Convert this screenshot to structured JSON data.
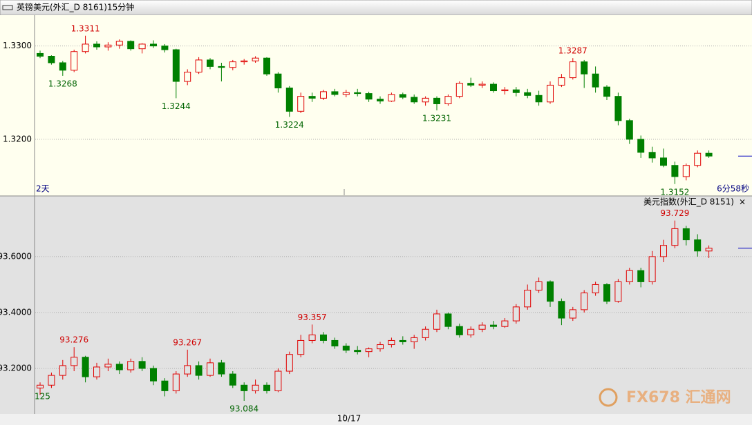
{
  "header": {
    "title": "英镑美元(外汇_D 8161)15分钟"
  },
  "watermark": "FX678 汇通网",
  "chart_data": [
    {
      "type": "candlestick",
      "period_label": "2天",
      "countdown": "6分58秒",
      "up_color": "#e00000",
      "down_color": "#008000",
      "grid": true,
      "ylim": [
        1.314,
        1.3333
      ],
      "yticks": [
        {
          "value": 1.33,
          "label": "1.3300"
        },
        {
          "value": 1.32,
          "label": "1.3200"
        }
      ],
      "candles": [
        [
          1.3292,
          1.3295,
          1.3287,
          1.3289
        ],
        [
          1.3289,
          1.329,
          1.328,
          1.3282
        ],
        [
          1.3282,
          1.3284,
          1.3268,
          1.3274
        ],
        [
          1.3274,
          1.3296,
          1.3272,
          1.3294
        ],
        [
          1.3294,
          1.3311,
          1.3292,
          1.3302
        ],
        [
          1.3302,
          1.3305,
          1.3296,
          1.3299
        ],
        [
          1.3299,
          1.3304,
          1.3295,
          1.3301
        ],
        [
          1.3301,
          1.3307,
          1.3297,
          1.3305
        ],
        [
          1.3305,
          1.3306,
          1.3295,
          1.3297
        ],
        [
          1.3297,
          1.3303,
          1.3292,
          1.3302
        ],
        [
          1.3302,
          1.3306,
          1.3298,
          1.33
        ],
        [
          1.33,
          1.3302,
          1.3293,
          1.3296
        ],
        [
          1.3296,
          1.3297,
          1.3244,
          1.3262
        ],
        [
          1.3262,
          1.3275,
          1.3258,
          1.3272
        ],
        [
          1.3272,
          1.3288,
          1.327,
          1.3285
        ],
        [
          1.3285,
          1.3287,
          1.3275,
          1.3278
        ],
        [
          1.3278,
          1.3282,
          1.3262,
          1.3277
        ],
        [
          1.3277,
          1.3285,
          1.3274,
          1.3283
        ],
        [
          1.3283,
          1.3286,
          1.328,
          1.3284
        ],
        [
          1.3284,
          1.3289,
          1.3282,
          1.3287
        ],
        [
          1.3287,
          1.3288,
          1.3268,
          1.327
        ],
        [
          1.327,
          1.3272,
          1.325,
          1.3255
        ],
        [
          1.3255,
          1.3257,
          1.3224,
          1.323
        ],
        [
          1.323,
          1.325,
          1.3228,
          1.3246
        ],
        [
          1.3246,
          1.325,
          1.324,
          1.3244
        ],
        [
          1.3244,
          1.3253,
          1.3242,
          1.3251
        ],
        [
          1.3251,
          1.3254,
          1.3246,
          1.3248
        ],
        [
          1.3248,
          1.3253,
          1.3245,
          1.325
        ],
        [
          1.325,
          1.3254,
          1.3246,
          1.3249
        ],
        [
          1.3249,
          1.3251,
          1.324,
          1.3243
        ],
        [
          1.3243,
          1.3246,
          1.3238,
          1.3241
        ],
        [
          1.3241,
          1.325,
          1.324,
          1.3248
        ],
        [
          1.3248,
          1.325,
          1.3243,
          1.3245
        ],
        [
          1.3245,
          1.3248,
          1.3238,
          1.324
        ],
        [
          1.324,
          1.3246,
          1.3236,
          1.3244
        ],
        [
          1.3244,
          1.3246,
          1.3231,
          1.3238
        ],
        [
          1.3238,
          1.3248,
          1.3236,
          1.3246
        ],
        [
          1.3246,
          1.3262,
          1.3244,
          1.326
        ],
        [
          1.326,
          1.3266,
          1.3256,
          1.3258
        ],
        [
          1.3258,
          1.3262,
          1.3255,
          1.3259
        ],
        [
          1.3259,
          1.3261,
          1.325,
          1.3252
        ],
        [
          1.3252,
          1.3256,
          1.3248,
          1.3253
        ],
        [
          1.3253,
          1.3256,
          1.3246,
          1.325
        ],
        [
          1.325,
          1.3254,
          1.3244,
          1.3247
        ],
        [
          1.3247,
          1.3252,
          1.3236,
          1.324
        ],
        [
          1.324,
          1.3262,
          1.3238,
          1.3258
        ],
        [
          1.3258,
          1.327,
          1.3256,
          1.3266
        ],
        [
          1.3266,
          1.3287,
          1.3264,
          1.3283
        ],
        [
          1.3283,
          1.3285,
          1.3255,
          1.327
        ],
        [
          1.327,
          1.3278,
          1.325,
          1.3256
        ],
        [
          1.3256,
          1.3258,
          1.3242,
          1.3246
        ],
        [
          1.3246,
          1.325,
          1.3215,
          1.322
        ],
        [
          1.322,
          1.3222,
          1.3195,
          1.32
        ],
        [
          1.32,
          1.3204,
          1.318,
          1.3186
        ],
        [
          1.3186,
          1.3192,
          1.3175,
          1.318
        ],
        [
          1.318,
          1.319,
          1.317,
          1.3172
        ],
        [
          1.3172,
          1.3176,
          1.3152,
          1.316
        ],
        [
          1.316,
          1.3174,
          1.3156,
          1.3172
        ],
        [
          1.3172,
          1.3188,
          1.317,
          1.3185
        ],
        [
          1.3185,
          1.3188,
          1.318,
          1.3182
        ]
      ],
      "high_labels": [
        null,
        null,
        null,
        null,
        "1.3311",
        null,
        null,
        null,
        null,
        null,
        null,
        null,
        null,
        null,
        null,
        null,
        null,
        null,
        null,
        null,
        null,
        null,
        null,
        null,
        null,
        null,
        null,
        null,
        null,
        null,
        null,
        null,
        null,
        null,
        null,
        null,
        null,
        null,
        null,
        null,
        null,
        null,
        null,
        null,
        null,
        null,
        null,
        "1.3287",
        null,
        null,
        null,
        null,
        null,
        null,
        null,
        null,
        null,
        null,
        null,
        null
      ],
      "low_labels": [
        null,
        null,
        "1.3268",
        null,
        null,
        null,
        null,
        null,
        null,
        null,
        null,
        null,
        "1.3244",
        null,
        null,
        null,
        null,
        null,
        null,
        null,
        null,
        null,
        "1.3224",
        null,
        null,
        null,
        null,
        null,
        null,
        null,
        null,
        null,
        null,
        null,
        null,
        "1.3231",
        null,
        null,
        null,
        null,
        null,
        null,
        null,
        null,
        null,
        null,
        null,
        null,
        null,
        null,
        null,
        null,
        null,
        null,
        null,
        null,
        "1.3152",
        null,
        null,
        null
      ]
    },
    {
      "type": "candlestick",
      "title": "美元指数(外汇_D 8151)",
      "close_button": "×",
      "edge_label": "125",
      "date_label": "10/17",
      "up_color": "#e00000",
      "down_color": "#008000",
      "grid": true,
      "ylim": [
        93.037,
        93.817
      ],
      "yticks": [
        {
          "value": 93.6,
          "label": "93.6000"
        },
        {
          "value": 93.4,
          "label": "93.4000"
        },
        {
          "value": 93.2,
          "label": "93.2000"
        }
      ],
      "candles": [
        [
          93.13,
          93.15,
          93.105,
          93.14
        ],
        [
          93.14,
          93.185,
          93.13,
          93.175
        ],
        [
          93.175,
          93.23,
          93.16,
          93.21
        ],
        [
          93.21,
          93.276,
          93.19,
          93.24
        ],
        [
          93.24,
          93.245,
          93.15,
          93.17
        ],
        [
          93.17,
          93.22,
          93.16,
          93.205
        ],
        [
          93.205,
          93.235,
          93.19,
          93.215
        ],
        [
          93.215,
          93.225,
          93.18,
          93.195
        ],
        [
          93.195,
          93.235,
          93.185,
          93.225
        ],
        [
          93.225,
          93.24,
          93.19,
          93.2
        ],
        [
          93.2,
          93.21,
          93.14,
          93.155
        ],
        [
          93.155,
          93.165,
          93.1,
          93.12
        ],
        [
          93.12,
          93.19,
          93.11,
          93.18
        ],
        [
          93.18,
          93.267,
          93.17,
          93.21
        ],
        [
          93.21,
          93.225,
          93.16,
          93.175
        ],
        [
          93.175,
          93.235,
          93.17,
          93.22
        ],
        [
          93.22,
          93.23,
          93.17,
          93.18
        ],
        [
          93.18,
          93.19,
          93.13,
          93.14
        ],
        [
          93.14,
          93.15,
          93.084,
          93.12
        ],
        [
          93.12,
          93.16,
          93.11,
          93.14
        ],
        [
          93.14,
          93.15,
          93.11,
          93.12
        ],
        [
          93.12,
          93.2,
          93.115,
          93.19
        ],
        [
          93.19,
          93.26,
          93.18,
          93.25
        ],
        [
          93.25,
          93.32,
          93.24,
          93.3
        ],
        [
          93.3,
          93.357,
          93.29,
          93.32
        ],
        [
          93.32,
          93.33,
          93.29,
          93.3
        ],
        [
          93.3,
          93.31,
          93.27,
          93.28
        ],
        [
          93.28,
          93.29,
          93.255,
          93.265
        ],
        [
          93.265,
          93.28,
          93.25,
          93.26
        ],
        [
          93.26,
          93.275,
          93.24,
          93.27
        ],
        [
          93.27,
          93.295,
          93.26,
          93.285
        ],
        [
          93.285,
          93.31,
          93.275,
          93.3
        ],
        [
          93.3,
          93.315,
          93.285,
          93.295
        ],
        [
          93.295,
          93.32,
          93.27,
          93.31
        ],
        [
          93.31,
          93.35,
          93.3,
          93.34
        ],
        [
          93.34,
          93.41,
          93.33,
          93.395
        ],
        [
          93.395,
          93.4,
          93.34,
          93.35
        ],
        [
          93.35,
          93.36,
          93.31,
          93.32
        ],
        [
          93.32,
          93.35,
          93.31,
          93.34
        ],
        [
          93.34,
          93.365,
          93.33,
          93.355
        ],
        [
          93.355,
          93.37,
          93.34,
          93.35
        ],
        [
          93.35,
          93.38,
          93.345,
          93.37
        ],
        [
          93.37,
          93.43,
          93.36,
          93.42
        ],
        [
          93.42,
          93.5,
          93.41,
          93.48
        ],
        [
          93.48,
          93.525,
          93.47,
          93.51
        ],
        [
          93.51,
          93.515,
          93.42,
          93.44
        ],
        [
          93.44,
          93.45,
          93.355,
          93.38
        ],
        [
          93.38,
          93.42,
          93.37,
          93.41
        ],
        [
          93.41,
          93.48,
          93.4,
          93.47
        ],
        [
          93.47,
          93.51,
          93.46,
          93.5
        ],
        [
          93.5,
          93.505,
          93.43,
          93.44
        ],
        [
          93.44,
          93.52,
          93.435,
          93.51
        ],
        [
          93.51,
          93.56,
          93.5,
          93.55
        ],
        [
          93.55,
          93.56,
          93.49,
          93.51
        ],
        [
          93.51,
          93.62,
          93.5,
          93.6
        ],
        [
          93.6,
          93.66,
          93.58,
          93.64
        ],
        [
          93.64,
          93.729,
          93.63,
          93.7
        ],
        [
          93.7,
          93.71,
          93.64,
          93.66
        ],
        [
          93.66,
          93.68,
          93.6,
          93.62
        ],
        [
          93.62,
          93.64,
          93.595,
          93.63
        ]
      ],
      "high_labels": [
        null,
        null,
        null,
        "93.276",
        null,
        null,
        null,
        null,
        null,
        null,
        null,
        null,
        null,
        "93.267",
        null,
        null,
        null,
        null,
        null,
        null,
        null,
        null,
        null,
        null,
        "93.357",
        null,
        null,
        null,
        null,
        null,
        null,
        null,
        null,
        null,
        null,
        null,
        null,
        null,
        null,
        null,
        null,
        null,
        null,
        null,
        null,
        null,
        null,
        null,
        null,
        null,
        null,
        null,
        null,
        null,
        null,
        null,
        "93.729",
        null,
        null,
        null
      ],
      "low_labels": [
        null,
        null,
        null,
        null,
        null,
        null,
        null,
        null,
        null,
        null,
        null,
        null,
        null,
        null,
        null,
        null,
        null,
        null,
        "93.084",
        null,
        null,
        null,
        null,
        null,
        null,
        null,
        null,
        null,
        null,
        null,
        null,
        null,
        null,
        null,
        null,
        null,
        null,
        null,
        null,
        null,
        null,
        null,
        null,
        null,
        null,
        null,
        null,
        null,
        null,
        null,
        null,
        null,
        null,
        null,
        null,
        null,
        null,
        null,
        null,
        null
      ]
    }
  ]
}
